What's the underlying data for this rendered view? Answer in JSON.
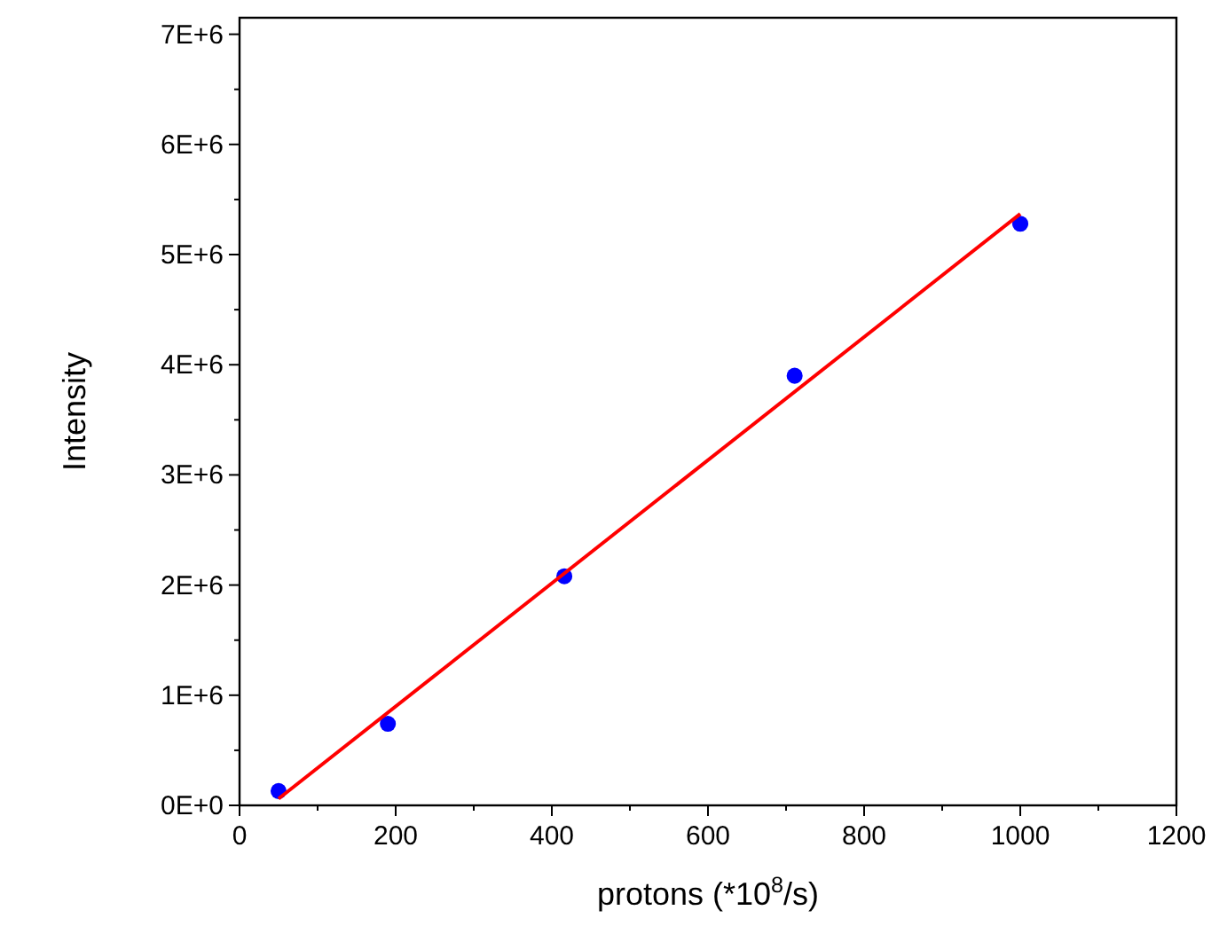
{
  "chart_data": {
    "type": "scatter",
    "xlabel": "protons (*10$^{8}$/s)",
    "ylabel": "Intensity",
    "xlim": [
      0,
      1200
    ],
    "ylim": [
      0,
      7150000
    ],
    "xticks": [
      0,
      {
        "value": 100,
        "label": null
      },
      200,
      {
        "value": 300,
        "label": null
      },
      400,
      {
        "value": 500,
        "label": null
      },
      600,
      {
        "value": 700,
        "label": null
      },
      800,
      {
        "value": 900,
        "label": null
      },
      1000,
      {
        "value": 1100,
        "label": null
      },
      1200
    ],
    "yticks": [
      {
        "value": 0,
        "label": "0E+0"
      },
      {
        "value": 500000,
        "label": null
      },
      {
        "value": 1000000,
        "label": "1E+6"
      },
      {
        "value": 1500000,
        "label": null
      },
      {
        "value": 2000000,
        "label": "2E+6"
      },
      {
        "value": 2500000,
        "label": null
      },
      {
        "value": 3000000,
        "label": "3E+6"
      },
      {
        "value": 3500000,
        "label": null
      },
      {
        "value": 4000000,
        "label": "4E+6"
      },
      {
        "value": 4500000,
        "label": null
      },
      {
        "value": 5000000,
        "label": "5E+6"
      },
      {
        "value": 5500000,
        "label": null
      },
      {
        "value": 6000000,
        "label": "6E+6"
      },
      {
        "value": 6500000,
        "label": null
      },
      {
        "value": 7000000,
        "label": "7E+6"
      }
    ],
    "grid": false,
    "series": [
      {
        "color": "#0000ff",
        "marker": "circle",
        "x": [
          50,
          190,
          416,
          711,
          1000
        ],
        "values": [
          130000,
          740000,
          2080000,
          3900000,
          5280000
        ]
      },
      {
        "type": "line",
        "color": "#ff0000",
        "x": [
          50,
          1000
        ],
        "values": [
          60000,
          5370000
        ]
      }
    ]
  }
}
